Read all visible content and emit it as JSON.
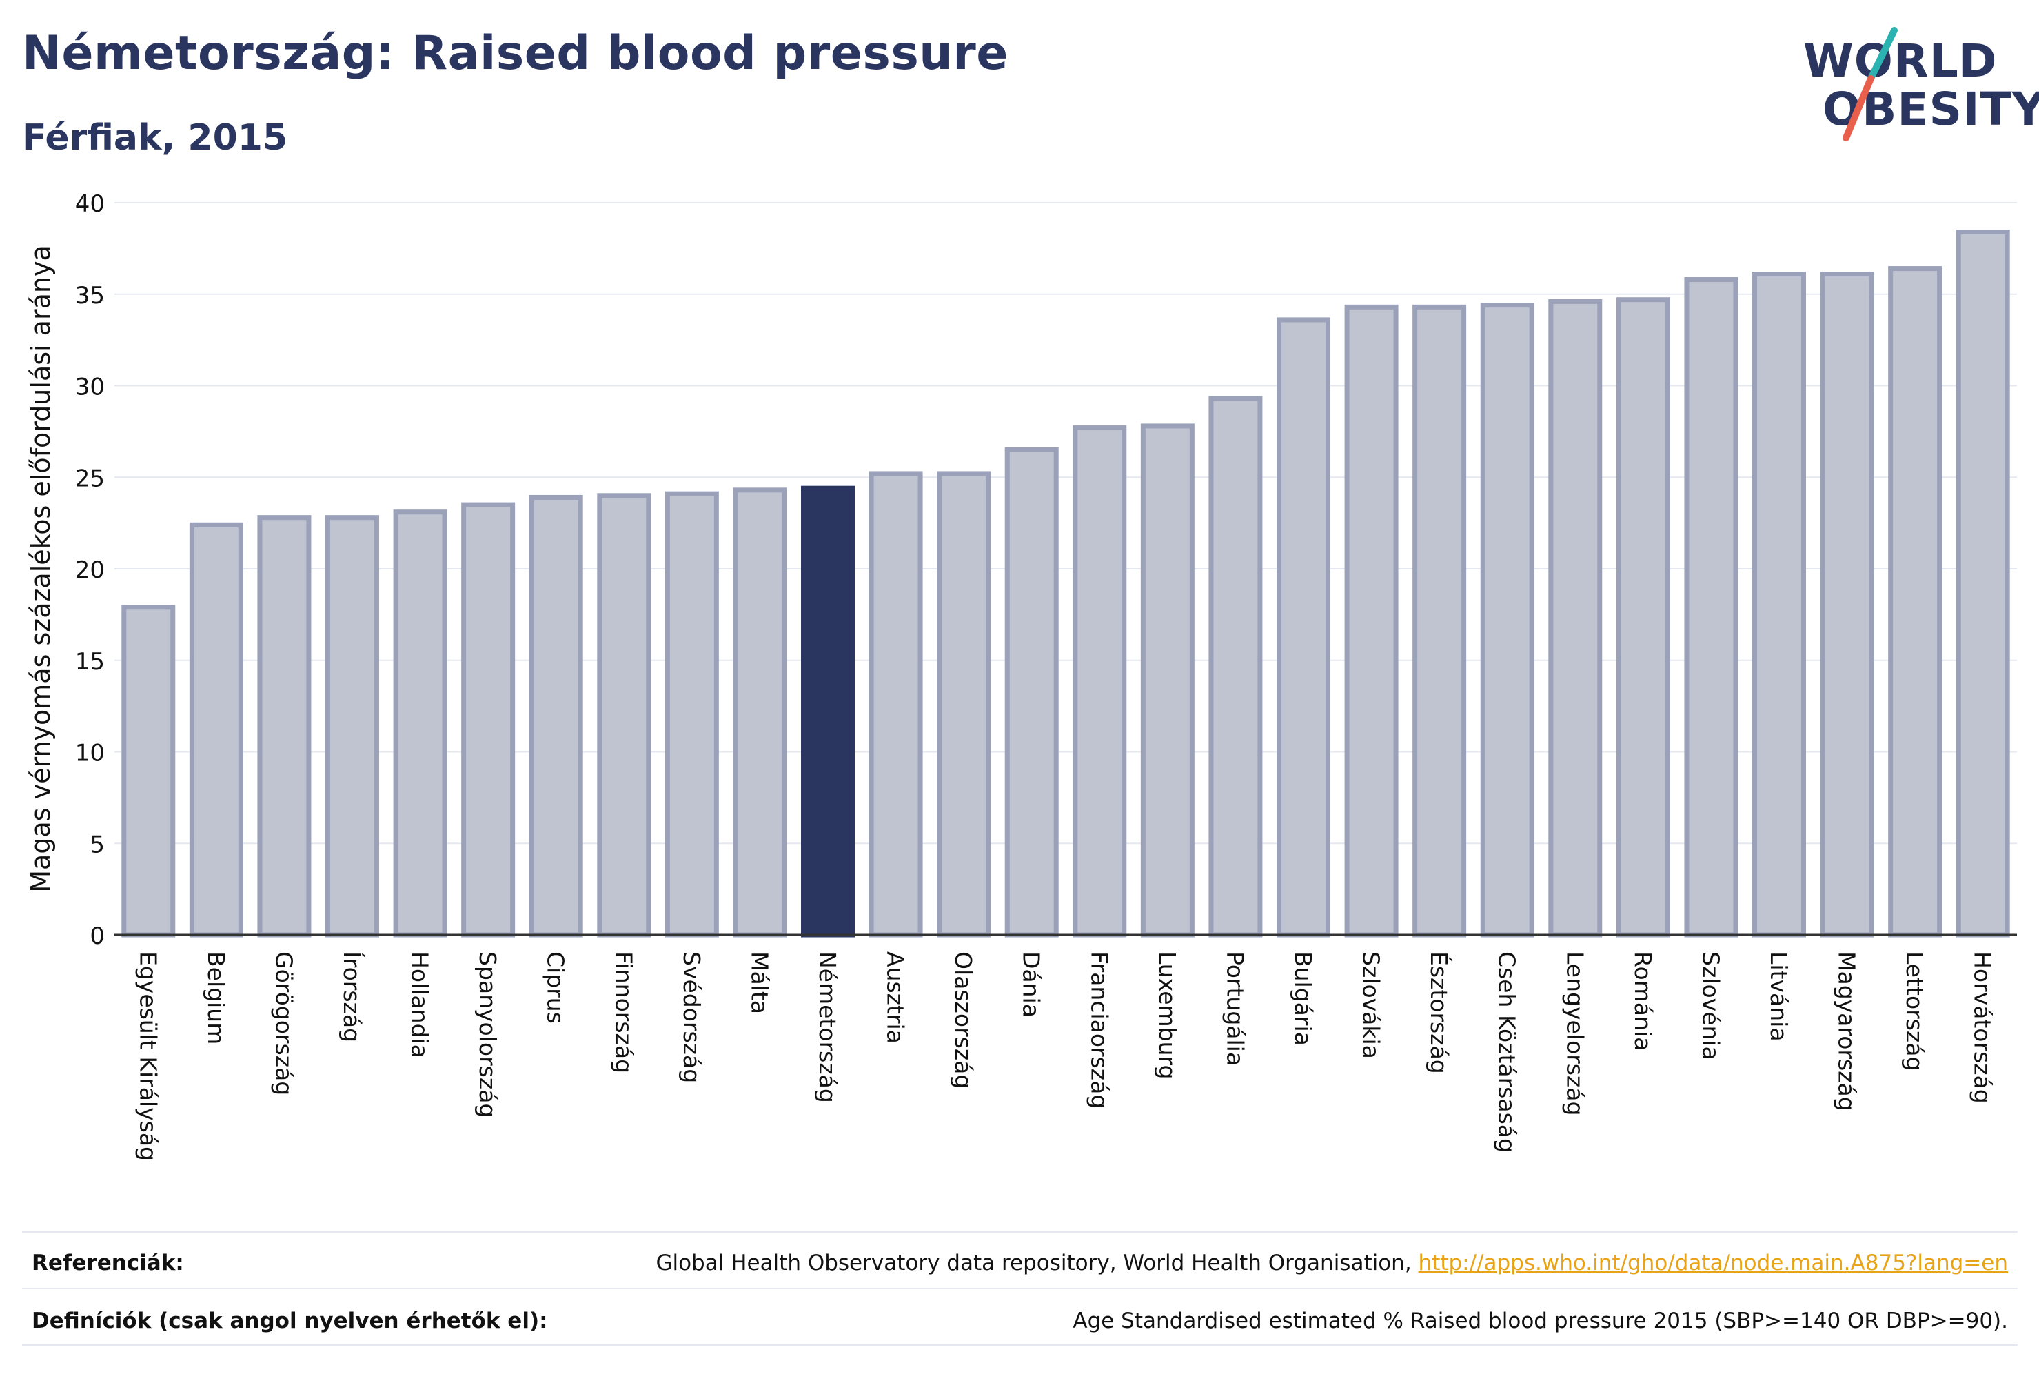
{
  "header": {
    "title": "Németország: Raised blood pressure",
    "subtitle": "Férfiak, 2015"
  },
  "logo": {
    "line1": "WORLD",
    "line2": "OBESITY",
    "accent_colors": [
      "#2bb3b1",
      "#e8604c"
    ]
  },
  "chart_data": {
    "type": "bar",
    "title": "Németország: Raised blood pressure",
    "subtitle": "Férfiak, 2015",
    "ylabel": "Magas vérnyomás százalékos előfordulási aránya",
    "xlabel": "",
    "ylim": [
      0,
      40
    ],
    "yticks": [
      0,
      5,
      10,
      15,
      20,
      25,
      30,
      35,
      40
    ],
    "grid": true,
    "highlight": "Németország",
    "colors": {
      "bar": "#c0c4d1",
      "bar_edge": "#9aa1b8",
      "highlight": "#2a3560"
    },
    "categories": [
      "Egyesült Királyság",
      "Belgium",
      "Görögország",
      "Írország",
      "Hollandia",
      "Spanyolország",
      "Ciprus",
      "Finnország",
      "Svédország",
      "Málta",
      "Németország",
      "Ausztria",
      "Olaszország",
      "Dánia",
      "Franciaország",
      "Luxemburg",
      "Portugália",
      "Bulgária",
      "Szlovákia",
      "Észtország",
      "Cseh Köztársaság",
      "Lengyelország",
      "Románia",
      "Szlovénia",
      "Litvánia",
      "Magyarország",
      "Lettország",
      "Horvátország"
    ],
    "values": [
      17.9,
      22.4,
      22.8,
      22.8,
      23.1,
      23.5,
      23.9,
      24.0,
      24.1,
      24.3,
      24.4,
      25.2,
      25.2,
      26.5,
      27.7,
      27.8,
      29.3,
      33.6,
      34.3,
      34.3,
      34.4,
      34.6,
      34.7,
      35.8,
      36.1,
      36.1,
      36.4,
      38.4
    ]
  },
  "footer": {
    "references_label": "Referenciák:",
    "references_text": "Global Health Observatory data repository, World Health Organisation, ",
    "references_link": "http://apps.who.int/gho/data/node.main.A875?lang=en",
    "definitions_label": "Definíciók (csak angol nyelven érhetők el):",
    "definitions_text": "Age Standardised estimated % Raised blood pressure 2015 (SBP>=140 OR DBP>=90)."
  }
}
